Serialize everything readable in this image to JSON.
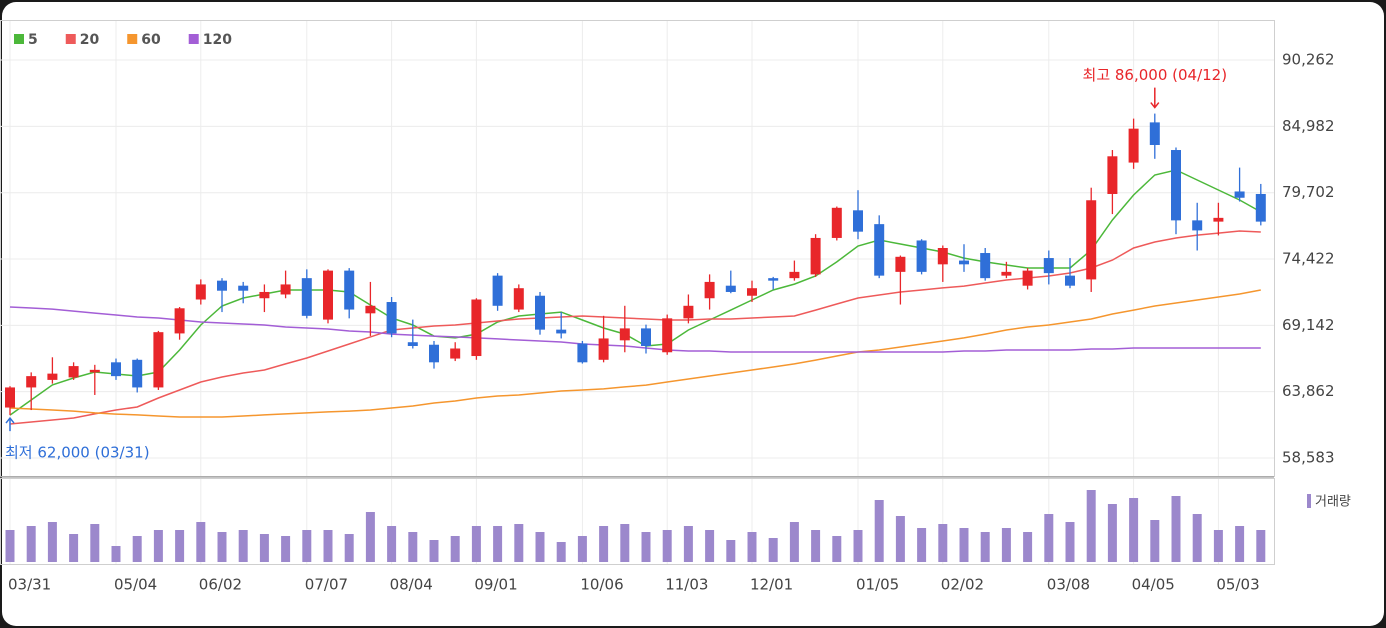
{
  "chart_data": {
    "type": "candlestick",
    "categories": [
      "03/31",
      null,
      null,
      null,
      null,
      "05/04",
      null,
      null,
      null,
      "06/02",
      null,
      null,
      null,
      null,
      "07/07",
      null,
      null,
      null,
      "08/04",
      null,
      null,
      null,
      "09/01",
      null,
      null,
      null,
      null,
      "10/06",
      null,
      null,
      null,
      "11/03",
      null,
      null,
      null,
      "12/01",
      null,
      null,
      null,
      null,
      "01/05",
      null,
      null,
      null,
      "02/02",
      null,
      null,
      null,
      null,
      "03/08",
      null,
      null,
      null,
      "04/05",
      null,
      null,
      null,
      "05/03",
      null,
      null
    ],
    "open": [
      62600,
      64200,
      64800,
      65000,
      65400,
      66200,
      66400,
      64200,
      68500,
      71200,
      72700,
      72300,
      71300,
      71600,
      72900,
      69600,
      73500,
      70100,
      71000,
      67800,
      67600,
      66500,
      66700,
      73100,
      70400,
      71500,
      68800,
      67700,
      66400,
      67950,
      68900,
      67000,
      69700,
      71300,
      72300,
      71500,
      72900,
      72900,
      73200,
      76100,
      78300,
      77200,
      73400,
      75900,
      74000,
      74300,
      74900,
      73100,
      72300,
      74500,
      73100,
      72800,
      79600,
      82100,
      85300,
      83100,
      77500,
      77400,
      79800,
      79600
    ],
    "high": [
      64300,
      65400,
      66600,
      66200,
      66000,
      66500,
      66500,
      68700,
      70600,
      72800,
      72900,
      72600,
      72400,
      73500,
      73600,
      73600,
      73700,
      72600,
      71400,
      69600,
      67900,
      67800,
      71300,
      73300,
      72400,
      71800,
      70200,
      67900,
      69900,
      70700,
      69200,
      70000,
      71600,
      73200,
      73500,
      72700,
      73000,
      74300,
      76400,
      78600,
      79900,
      77900,
      74700,
      76000,
      75500,
      75600,
      75300,
      74200,
      73700,
      75100,
      74500,
      80100,
      83100,
      85600,
      86000,
      83300,
      78900,
      78900,
      81700,
      80400
    ],
    "low": [
      62000,
      62400,
      64500,
      64800,
      63600,
      64800,
      63800,
      64000,
      68000,
      70800,
      70200,
      70900,
      70200,
      71300,
      69700,
      69300,
      69700,
      68300,
      68200,
      67300,
      65700,
      66300,
      66400,
      70300,
      70200,
      68400,
      68100,
      66100,
      66200,
      67000,
      66900,
      66800,
      69300,
      70400,
      71700,
      71000,
      72000,
      72700,
      73000,
      75900,
      76000,
      72900,
      70800,
      73200,
      72600,
      73400,
      72700,
      72900,
      72000,
      72400,
      72100,
      71800,
      78000,
      81600,
      82400,
      76400,
      75100,
      76300,
      79000,
      77100
    ],
    "close": [
      64200,
      65100,
      65300,
      65900,
      65600,
      65100,
      64200,
      68600,
      70500,
      72400,
      71900,
      71900,
      71800,
      72400,
      69900,
      73500,
      70400,
      70700,
      68500,
      67500,
      66200,
      67300,
      71200,
      70700,
      72100,
      68800,
      68500,
      66200,
      68100,
      68900,
      67500,
      69700,
      70700,
      72600,
      71800,
      72100,
      72700,
      73400,
      76100,
      78500,
      76600,
      73100,
      74600,
      73400,
      75300,
      74000,
      72900,
      73400,
      73500,
      73300,
      72300,
      79100,
      82600,
      84800,
      83500,
      77500,
      76700,
      77700,
      79300,
      77400
    ],
    "up_color": "#e8262a",
    "down_color": "#2f6fd8",
    "volume": [
      32,
      36,
      40,
      28,
      38,
      16,
      26,
      32,
      32,
      40,
      30,
      32,
      28,
      26,
      32,
      32,
      28,
      50,
      36,
      30,
      22,
      26,
      36,
      36,
      38,
      30,
      20,
      26,
      36,
      38,
      30,
      32,
      36,
      32,
      22,
      30,
      24,
      40,
      32,
      26,
      32,
      62,
      46,
      34,
      38,
      34,
      30,
      34,
      30,
      48,
      40,
      72,
      58,
      64,
      42,
      66,
      48,
      32,
      36,
      32
    ],
    "volume_label": "거래량",
    "volume_color": "#9c88cc",
    "series": [
      {
        "name": "5",
        "color": "#4cb83a",
        "values": [
          62000,
          63200,
          64400,
          64950,
          65430,
          65270,
          65110,
          65430,
          67180,
          69170,
          70680,
          71320,
          71640,
          71960,
          71960,
          71960,
          71800,
          70760,
          69730,
          69170,
          68290,
          68140,
          68450,
          69410,
          69890,
          70050,
          70200,
          69570,
          68930,
          68450,
          67500,
          67660,
          68770,
          69570,
          70360,
          71160,
          71960,
          72430,
          73070,
          74190,
          75460,
          75940,
          75620,
          75300,
          74980,
          74500,
          74190,
          73950,
          73710,
          73710,
          73710,
          75140,
          77530,
          79520,
          81110,
          81510,
          80710,
          79920,
          79120,
          78170
        ]
      },
      {
        "name": "20",
        "color": "#ee5a5a",
        "values": [
          61290,
          61450,
          61610,
          61770,
          62090,
          62400,
          62640,
          63360,
          64000,
          64630,
          65030,
          65350,
          65590,
          66070,
          66540,
          67100,
          67660,
          68220,
          68770,
          68930,
          69090,
          69170,
          69330,
          69490,
          69650,
          69730,
          69810,
          69890,
          69810,
          69730,
          69650,
          69570,
          69570,
          69650,
          69650,
          69730,
          69810,
          69890,
          70360,
          70840,
          71320,
          71560,
          71800,
          71960,
          72120,
          72270,
          72510,
          72750,
          72910,
          73070,
          73310,
          73710,
          74340,
          75300,
          75780,
          76100,
          76330,
          76490,
          76650,
          76570
        ]
      },
      {
        "name": "60",
        "color": "#f5962e",
        "values": [
          62560,
          62480,
          62400,
          62320,
          62170,
          62080,
          62010,
          61930,
          61850,
          61850,
          61850,
          61930,
          62010,
          62090,
          62170,
          62250,
          62320,
          62400,
          62560,
          62720,
          62960,
          63120,
          63360,
          63520,
          63600,
          63760,
          63920,
          64000,
          64080,
          64240,
          64390,
          64630,
          64870,
          65110,
          65350,
          65590,
          65830,
          66070,
          66380,
          66700,
          67020,
          67180,
          67420,
          67660,
          67900,
          68140,
          68450,
          68770,
          69010,
          69170,
          69410,
          69650,
          70050,
          70360,
          70680,
          70920,
          71160,
          71400,
          71640,
          71960
        ]
      },
      {
        "name": "120",
        "color": "#a35ed6",
        "values": [
          70600,
          70520,
          70440,
          70280,
          70120,
          69970,
          69810,
          69730,
          69570,
          69410,
          69330,
          69250,
          69170,
          69010,
          68930,
          68850,
          68690,
          68610,
          68450,
          68370,
          68290,
          68220,
          68140,
          68060,
          67980,
          67900,
          67820,
          67660,
          67580,
          67500,
          67340,
          67180,
          67100,
          67100,
          67020,
          67020,
          67020,
          67020,
          67020,
          67020,
          67020,
          67020,
          67020,
          67020,
          67020,
          67100,
          67100,
          67180,
          67180,
          67180,
          67180,
          67260,
          67260,
          67340,
          67340,
          67340,
          67340,
          67340,
          67340,
          67340
        ]
      }
    ],
    "ylim": [
      57150,
      91460
    ],
    "yticks": [
      {
        "value": 58583,
        "label": "58,583"
      },
      {
        "value": 63862,
        "label": "63,862"
      },
      {
        "value": 69142,
        "label": "69,142"
      },
      {
        "value": 74422,
        "label": "74,422"
      },
      {
        "value": 79702,
        "label": "79,702"
      },
      {
        "value": 84982,
        "label": "84,982"
      },
      {
        "value": 90262,
        "label": "90,262"
      }
    ],
    "grid": true,
    "annotations": {
      "high": "최고 86,000 (04/12)",
      "low": "최저 62,000 (03/31)"
    }
  }
}
